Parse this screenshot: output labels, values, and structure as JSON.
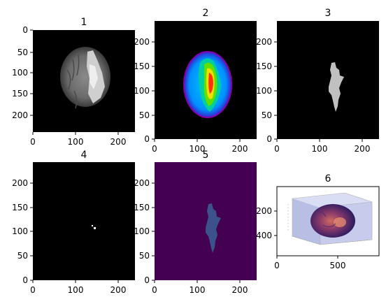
{
  "chart_data": [
    {
      "type": "image",
      "title": "1",
      "cmap": "gray",
      "content": "axial brain MRI slice with bright lesion",
      "extent": [
        0,
        240,
        240,
        0
      ],
      "xticks": [
        0,
        100,
        200
      ],
      "yticks": [
        0,
        50,
        100,
        150,
        200
      ]
    },
    {
      "type": "image",
      "title": "2",
      "cmap": "nipy_spectral",
      "content": "brain slice in rainbow colormap",
      "extent": [
        0,
        240,
        0,
        240
      ],
      "xticks": [
        0,
        100,
        200
      ],
      "yticks": [
        0,
        50,
        100,
        150,
        200
      ]
    },
    {
      "type": "image",
      "title": "3",
      "cmap": "gray",
      "content": "binary tumor mask",
      "extent": [
        0,
        240,
        0,
        240
      ],
      "xticks": [
        0,
        100,
        200
      ],
      "yticks": [
        0,
        50,
        100,
        150,
        200
      ]
    },
    {
      "type": "image",
      "title": "4",
      "cmap": "gray",
      "content": "small bright spot mask",
      "extent": [
        0,
        240,
        0,
        240
      ],
      "xticks": [
        0,
        100,
        200
      ],
      "yticks": [
        0,
        50,
        100,
        150,
        200
      ]
    },
    {
      "type": "image",
      "title": "5",
      "cmap": "viridis",
      "content": "tumor mask in viridis colormap",
      "extent": [
        0,
        240,
        0,
        240
      ],
      "xticks": [
        0,
        100,
        200
      ],
      "yticks": [
        0,
        50,
        100,
        150,
        200
      ]
    },
    {
      "type": "image",
      "title": "6",
      "cmap": "rgb",
      "content": "3D volume rendering of brain",
      "extent": [
        0,
        840,
        570,
        0
      ],
      "xticks": [
        0,
        500
      ],
      "yticks": [
        200,
        400
      ]
    }
  ]
}
